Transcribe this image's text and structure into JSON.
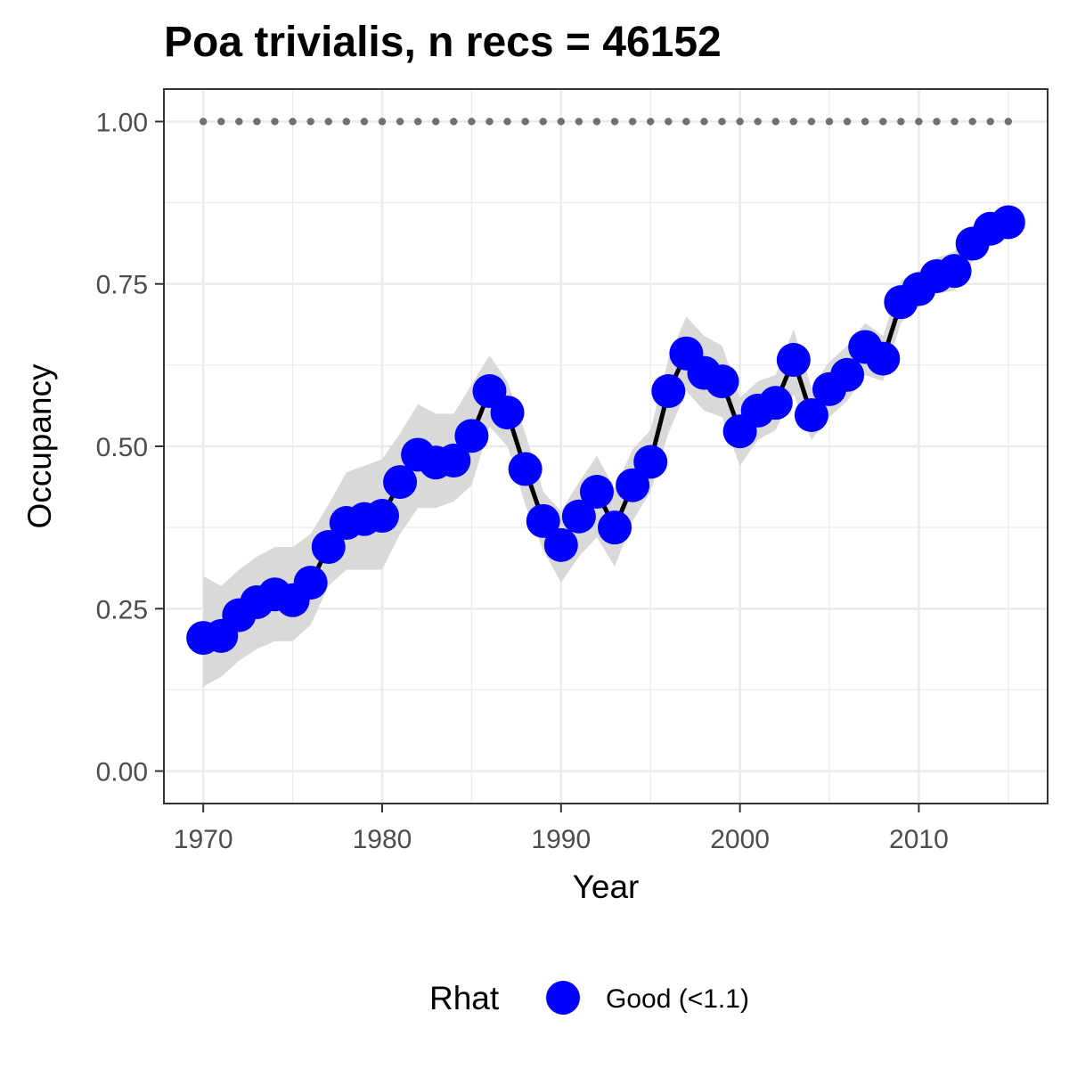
{
  "chart_data": {
    "type": "line",
    "title": "Poa trivialis, n recs = 46152",
    "xlabel": "Year",
    "ylabel": "Occupancy",
    "xlim": [
      1967.8,
      2017.2
    ],
    "ylim": [
      -0.05,
      1.05
    ],
    "x_ticks": [
      1970,
      1980,
      1990,
      2000,
      2010
    ],
    "x_tick_labels": [
      "1970",
      "1980",
      "1990",
      "2000",
      "2010"
    ],
    "y_ticks": [
      0,
      0.25,
      0.5,
      0.75,
      1.0
    ],
    "y_tick_labels": [
      "0.00",
      "0.25",
      "0.50",
      "0.75",
      "1.00"
    ],
    "grid": true,
    "legend": {
      "title": "Rhat",
      "position": "bottom",
      "entries": [
        "Good (<1.1)"
      ]
    },
    "colors": {
      "points": "#0000ff",
      "line": "#000000",
      "ribbon": "#d9d9d9",
      "reference": "#707070",
      "grid": "#ebebeb",
      "panel_border": "#333333"
    },
    "reference_line": {
      "y": 1.0,
      "style": "dotted"
    },
    "x": [
      1970,
      1971,
      1972,
      1973,
      1974,
      1975,
      1976,
      1977,
      1978,
      1979,
      1980,
      1981,
      1982,
      1983,
      1984,
      1985,
      1986,
      1987,
      1988,
      1989,
      1990,
      1991,
      1992,
      1993,
      1994,
      1995,
      1996,
      1997,
      1998,
      1999,
      2000,
      2001,
      2002,
      2003,
      2004,
      2005,
      2006,
      2007,
      2008,
      2009,
      2010,
      2011,
      2012,
      2013,
      2014,
      2015
    ],
    "series": [
      {
        "name": "Good (<1.1)",
        "values": [
          0.205,
          0.208,
          0.24,
          0.26,
          0.272,
          0.263,
          0.29,
          0.345,
          0.382,
          0.388,
          0.393,
          0.445,
          0.487,
          0.475,
          0.478,
          0.516,
          0.585,
          0.552,
          0.465,
          0.385,
          0.348,
          0.392,
          0.43,
          0.375,
          0.44,
          0.476,
          0.585,
          0.643,
          0.613,
          0.6,
          0.523,
          0.555,
          0.567,
          0.633,
          0.548,
          0.588,
          0.61,
          0.653,
          0.635,
          0.722,
          0.742,
          0.762,
          0.77,
          0.812,
          0.835,
          0.845
        ],
        "lower": [
          0.13,
          0.145,
          0.17,
          0.188,
          0.2,
          0.2,
          0.225,
          0.285,
          0.31,
          0.31,
          0.31,
          0.365,
          0.405,
          0.405,
          0.415,
          0.44,
          0.53,
          0.5,
          0.41,
          0.34,
          0.29,
          0.33,
          0.36,
          0.315,
          0.385,
          0.43,
          0.52,
          0.585,
          0.555,
          0.545,
          0.47,
          0.51,
          0.525,
          0.58,
          0.51,
          0.545,
          0.57,
          0.61,
          0.6,
          0.69,
          0.715,
          0.735,
          0.74,
          0.785,
          0.81,
          0.82
        ],
        "upper": [
          0.3,
          0.285,
          0.31,
          0.33,
          0.345,
          0.345,
          0.365,
          0.41,
          0.46,
          0.47,
          0.48,
          0.52,
          0.565,
          0.55,
          0.55,
          0.595,
          0.64,
          0.6,
          0.52,
          0.43,
          0.4,
          0.445,
          0.485,
          0.435,
          0.495,
          0.525,
          0.635,
          0.7,
          0.67,
          0.655,
          0.575,
          0.6,
          0.61,
          0.68,
          0.59,
          0.63,
          0.655,
          0.69,
          0.67,
          0.755,
          0.77,
          0.79,
          0.8,
          0.84,
          0.86,
          0.87
        ]
      }
    ]
  }
}
